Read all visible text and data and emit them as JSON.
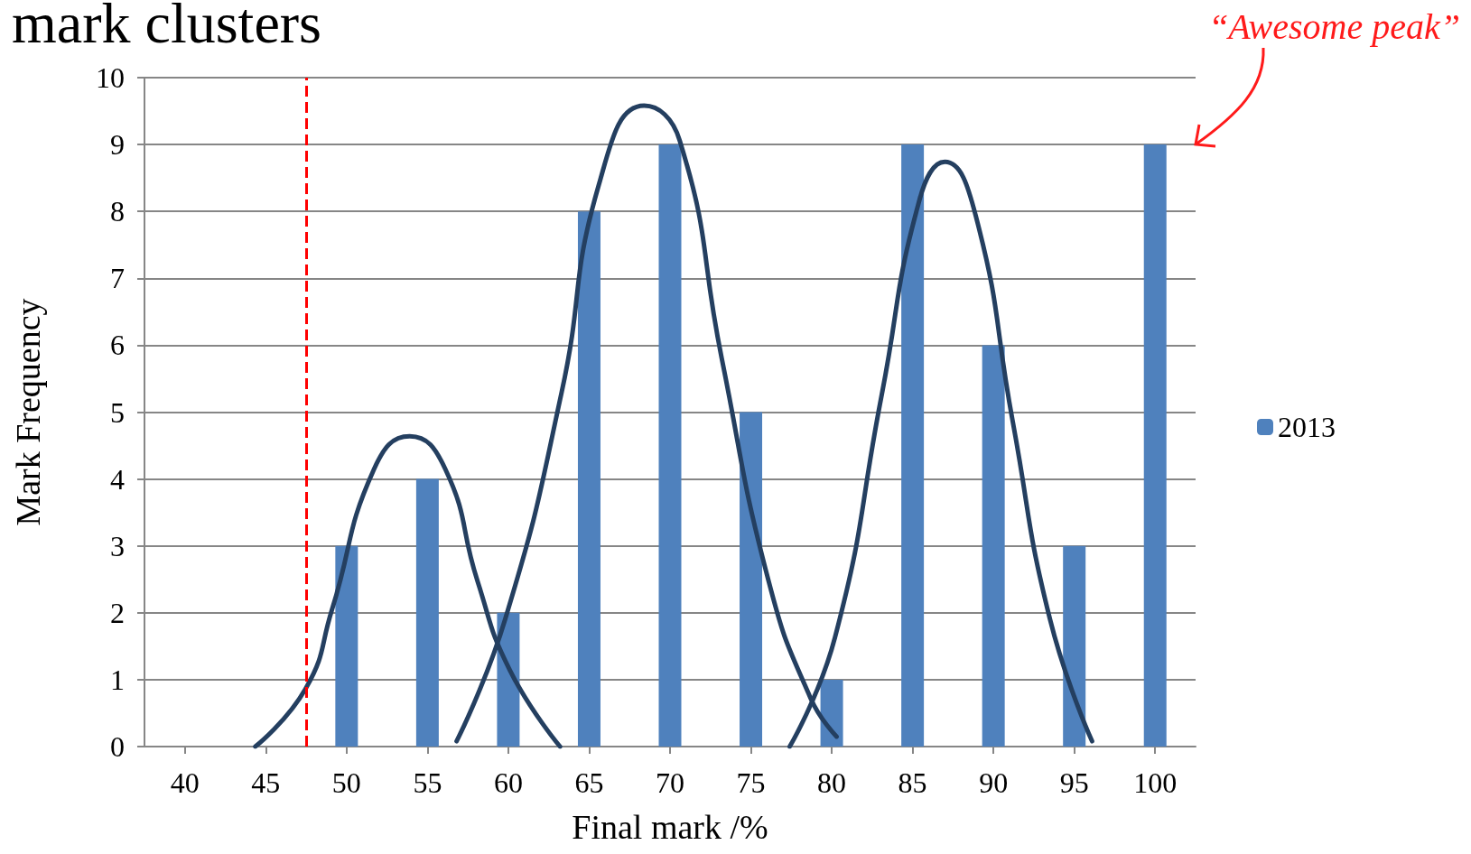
{
  "chart_data": {
    "type": "bar",
    "title": "mark clusters",
    "xlabel": "Final mark /%",
    "ylabel": "Mark Frequency",
    "x": [
      40,
      45,
      50,
      55,
      60,
      65,
      70,
      75,
      80,
      85,
      90,
      95,
      100
    ],
    "xlim": [
      37.5,
      102.5
    ],
    "xticks": [
      40,
      45,
      50,
      55,
      60,
      65,
      70,
      75,
      80,
      85,
      90,
      95,
      100
    ],
    "ylim": [
      0,
      10
    ],
    "yticks": [
      0,
      1,
      2,
      3,
      4,
      5,
      6,
      7,
      8,
      9,
      10
    ],
    "grid": "y",
    "legend": "right",
    "series": [
      {
        "name": "2013",
        "color": "#4f81bd",
        "values": [
          0,
          0,
          3,
          4,
          2,
          8,
          9,
          5,
          1,
          9,
          6,
          3,
          9
        ]
      },
      {
        "type": "line",
        "color": "#243f60",
        "marker": "none",
        "x": [
          44.35,
          47.5,
          49.1,
          51.7,
          53.9,
          56.1,
          58.1,
          60.1,
          63.2
        ],
        "values": [
          0,
          0.88,
          2.05,
          4.15,
          4.64,
          4.15,
          2.47,
          1.14,
          0
        ]
      },
      {
        "type": "line",
        "color": "#243f60",
        "marker": "none",
        "x": [
          56.8,
          59.8,
          63.3,
          65.6,
          68.4,
          70.6,
          73.2,
          76.1,
          78.7,
          80.3
        ],
        "values": [
          0.08,
          1.9,
          5.3,
          8.4,
          9.58,
          9.06,
          5.8,
          2.47,
          0.72,
          0.15
        ]
      },
      {
        "type": "line",
        "color": "#243f60",
        "marker": "none",
        "x": [
          77.4,
          80.2,
          83.1,
          85.4,
          87,
          88.9,
          91.2,
          93.5,
          96.1
        ],
        "values": [
          0,
          1.63,
          5.27,
          8.15,
          8.74,
          7.94,
          4.85,
          1.9,
          0.08
        ]
      }
    ],
    "ref_lines": [
      {
        "axis": "x",
        "value": 47.5,
        "color": "#ff0000",
        "line_style": "dashed"
      }
    ],
    "annotations": [
      "“Awesome peak”"
    ]
  }
}
